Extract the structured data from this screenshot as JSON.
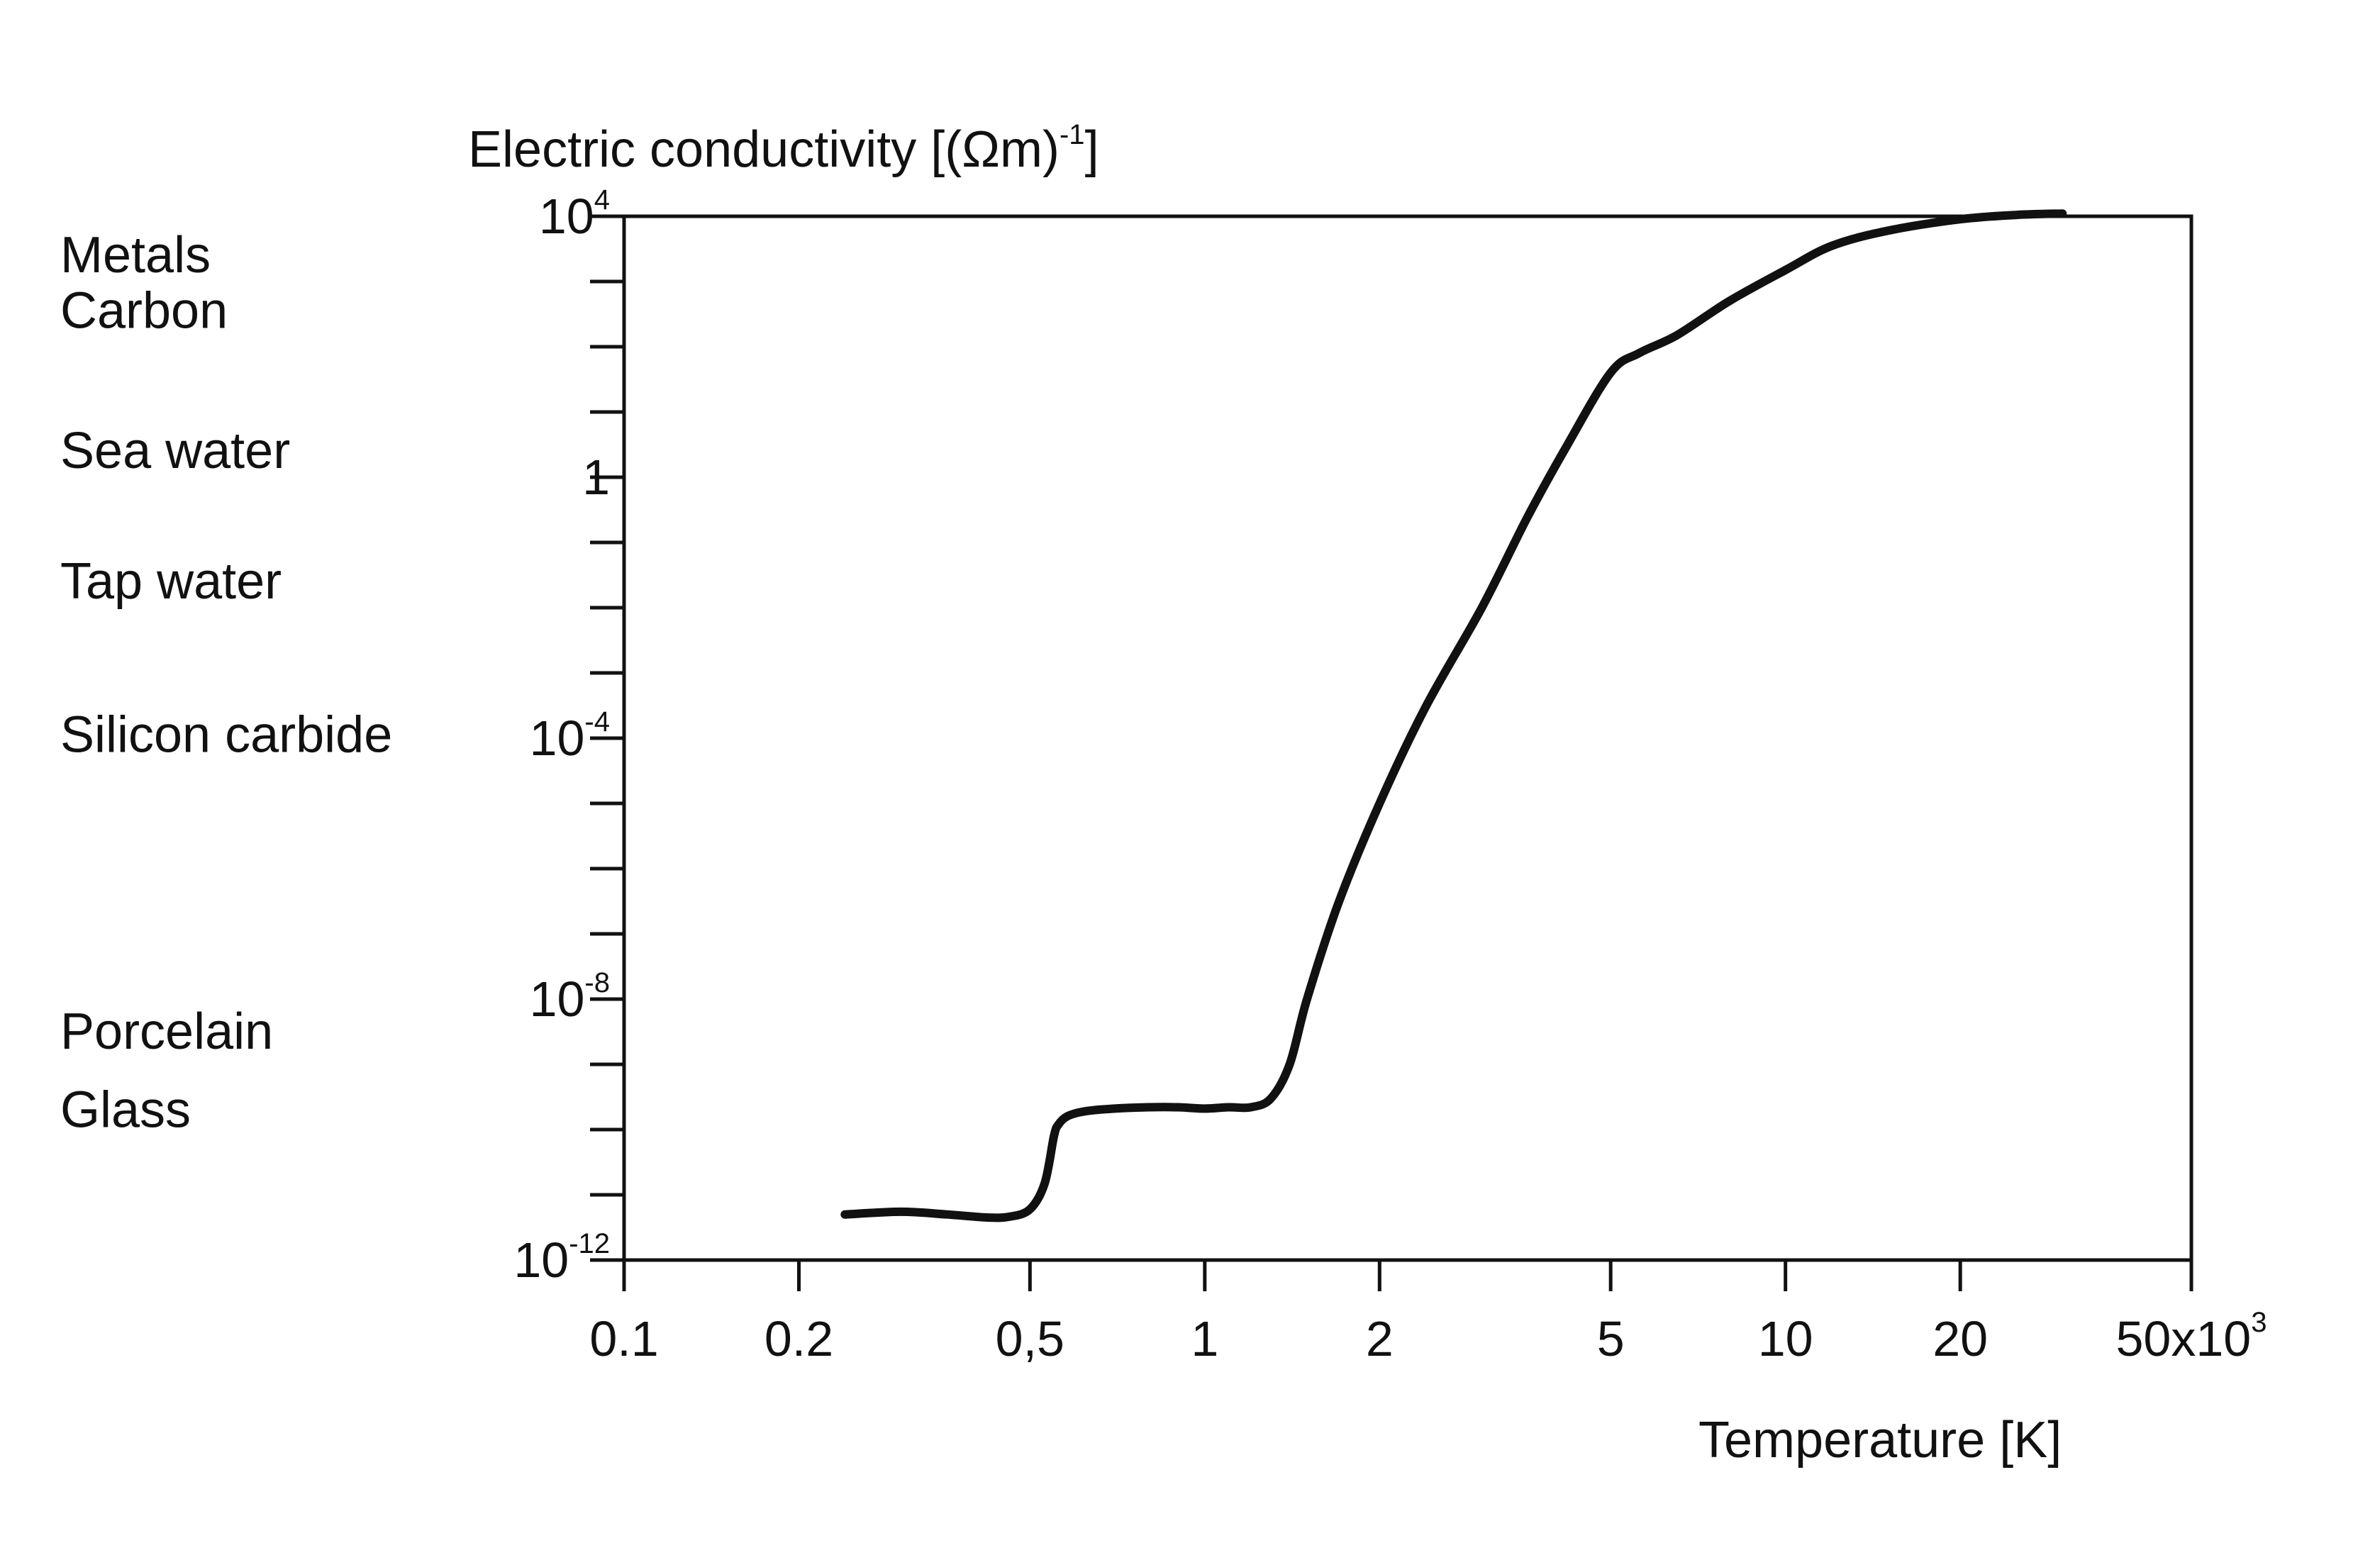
{
  "chart_data": {
    "type": "line",
    "title": "",
    "ylabel": "Electric conductivity [(Ωm)",
    "ylabel_sup": "-1",
    "ylabel_tail": "]",
    "xlabel": "Temperature [K]",
    "x_scale": "log",
    "y_scale": "log",
    "xlim": [
      100,
      50000
    ],
    "ylim": [
      1e-12,
      10000
    ],
    "grid": false,
    "x_ticks": [
      {
        "value": 100,
        "label": "0.1"
      },
      {
        "value": 200,
        "label": "0.2"
      },
      {
        "value": 500,
        "label": "0,5"
      },
      {
        "value": 1000,
        "label": "1"
      },
      {
        "value": 2000,
        "label": "2"
      },
      {
        "value": 5000,
        "label": "5"
      },
      {
        "value": 10000,
        "label": "10"
      },
      {
        "value": 20000,
        "label": "20"
      },
      {
        "value": 50000,
        "label": "50x10",
        "sup": "3"
      }
    ],
    "y_ticks": [
      {
        "exp": 4,
        "label": "10",
        "sup": "4"
      },
      {
        "exp": 0,
        "label": "1",
        "sup": ""
      },
      {
        "exp": -4,
        "label": "10",
        "sup": "-4"
      },
      {
        "exp": -8,
        "label": "10",
        "sup": "-8"
      },
      {
        "exp": -12,
        "label": "10",
        "sup": "-12"
      }
    ],
    "material_labels": [
      {
        "text": "Metals",
        "exp": 3.4
      },
      {
        "text": "Carbon",
        "exp": 2.55
      },
      {
        "text": "Sea water",
        "exp": 0.4
      },
      {
        "text": "Tap water",
        "exp": -1.6
      },
      {
        "text": "Silicon carbide",
        "exp": -3.95
      },
      {
        "text": "Porcelain",
        "exp": -8.5
      },
      {
        "text": "Glass",
        "exp": -9.7
      }
    ],
    "series": [
      {
        "x": [
          240,
          300,
          360,
          420,
          460,
          500,
          530,
          550,
          560,
          580,
          620,
          700,
          800,
          900,
          1000,
          1100,
          1200,
          1300,
          1400,
          1500,
          1700,
          2000,
          2400,
          3000,
          3600,
          4200,
          5000,
          5600,
          6500,
          8000,
          10000,
          12000,
          15000,
          20000,
          25000,
          30000
        ],
        "y": [
          5e-12,
          5.5e-12,
          5e-12,
          4.5e-12,
          4.6e-12,
          6e-12,
          1.5e-11,
          8e-11,
          1.2e-10,
          1.6e-10,
          1.9e-10,
          2.1e-10,
          2.2e-10,
          2.2e-10,
          2.1e-10,
          2.2e-10,
          2.2e-10,
          3e-10,
          1e-09,
          1e-08,
          3e-07,
          1e-05,
          0.0003,
          0.01,
          0.25,
          3,
          40,
          80,
          150,
          500,
          1500,
          3500,
          6000,
          9000,
          10500,
          11000
        ]
      }
    ]
  }
}
